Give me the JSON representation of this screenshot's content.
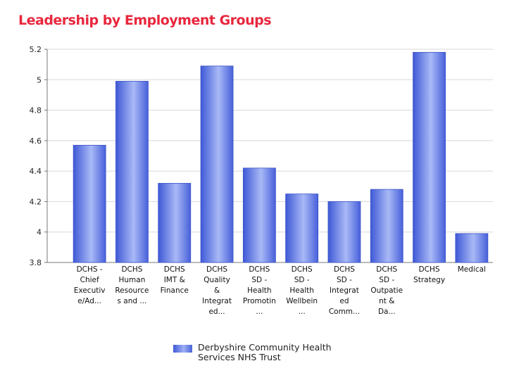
{
  "page": {
    "title": "Leadership by Employment Groups"
  },
  "chart_data": {
    "type": "bar",
    "categories": [
      [
        "DCHS -",
        "Chief",
        "Executiv",
        "e/Ad..."
      ],
      [
        "DCHS",
        "Human",
        "Resource",
        "s and ..."
      ],
      [
        "DCHS",
        "IMT &",
        "Finance"
      ],
      [
        "DCHS",
        "Quality",
        "&",
        "Integrat",
        "ed..."
      ],
      [
        "DCHS",
        "SD -",
        "Health",
        "Promotin",
        "..."
      ],
      [
        "DCHS",
        "SD -",
        "Health",
        "Wellbein",
        "..."
      ],
      [
        "DCHS",
        "SD -",
        "Integrat",
        "ed",
        "Comm..."
      ],
      [
        "DCHS",
        "SD -",
        "Outpatie",
        "nt &",
        "Da..."
      ],
      [
        "DCHS",
        "Strategy"
      ],
      [
        "Medical"
      ]
    ],
    "series": [
      {
        "name": "Derbyshire Community Health Services NHS Trust",
        "values": [
          4.57,
          4.99,
          4.32,
          5.09,
          4.42,
          4.25,
          4.2,
          4.28,
          5.18,
          3.99
        ]
      }
    ],
    "ylim": [
      3.8,
      5.2
    ],
    "yticks": [
      "3.8",
      "4",
      "4.2",
      "4.4",
      "4.6",
      "4.8",
      "5",
      "5.2"
    ],
    "grid": true,
    "legend": "bottom",
    "colors": {
      "bar_dark": "#3f59d6",
      "bar_light": "#a9b9f6",
      "title": "#e8273d",
      "grid": "#d8d8d8"
    }
  }
}
